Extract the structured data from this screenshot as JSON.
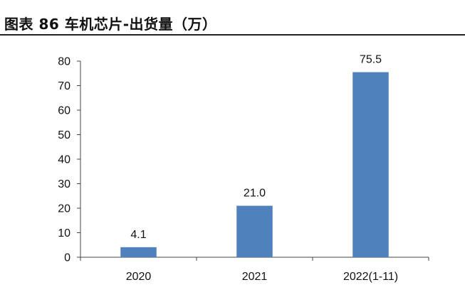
{
  "chart_data": {
    "type": "bar",
    "title": "图表 86 车机芯片-出货量（万）",
    "categories": [
      "2020",
      "2021",
      "2022(1-11)"
    ],
    "values": [
      4.1,
      21.0,
      75.5
    ],
    "data_labels": [
      "4.1",
      "21.0",
      "75.5"
    ],
    "yticks": [
      0,
      10,
      20,
      30,
      40,
      50,
      60,
      70,
      80
    ],
    "ylim": [
      0,
      80
    ],
    "xlabel": "",
    "ylabel": "",
    "grid": false,
    "bar_color": "#4f81bd"
  }
}
